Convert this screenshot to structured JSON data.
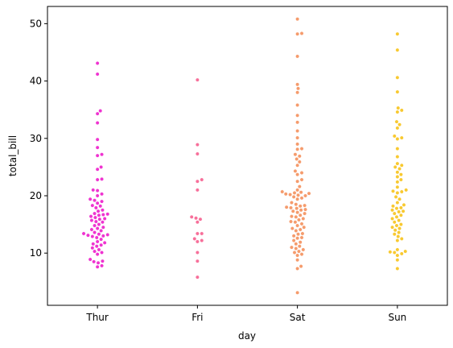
{
  "chart_data": {
    "type": "scatter",
    "subtype": "swarm",
    "xlabel": "day",
    "ylabel": "total_bill",
    "categories": [
      "Thur",
      "Fri",
      "Sat",
      "Sun"
    ],
    "ylim": [
      0.9,
      53.0
    ],
    "yticks": [
      10,
      20,
      30,
      40,
      50
    ],
    "grid": false,
    "colors": [
      "#ef33d0",
      "#f76f9a",
      "#f59b6c",
      "#f8c930"
    ],
    "series": [
      {
        "category": "Thur",
        "values": [
          43.1,
          41.2,
          34.8,
          34.3,
          32.7,
          29.8,
          28.4,
          27.2,
          27.0,
          25.0,
          24.6,
          22.9,
          22.8,
          21.0,
          20.9,
          20.3,
          20.0,
          19.4,
          19.2,
          19.0,
          18.7,
          18.3,
          18.2,
          17.9,
          17.5,
          17.3,
          16.9,
          16.8,
          16.7,
          16.6,
          16.4,
          16.2,
          16.0,
          15.9,
          15.7,
          15.5,
          15.4,
          15.0,
          14.8,
          14.5,
          14.3,
          14.1,
          13.9,
          13.6,
          13.4,
          13.3,
          13.2,
          13.1,
          13.0,
          12.9,
          12.7,
          12.4,
          12.0,
          11.8,
          11.6,
          11.4,
          11.2,
          10.9,
          10.6,
          10.3,
          10.1,
          9.8,
          8.9,
          8.6,
          8.5,
          8.3,
          7.8,
          7.6
        ]
      },
      {
        "category": "Fri",
        "values": [
          40.2,
          28.9,
          27.3,
          22.8,
          22.5,
          21.0,
          16.3,
          16.1,
          15.9,
          15.4,
          13.4,
          13.4,
          12.5,
          12.2,
          12.0,
          10.1,
          8.6,
          5.8
        ]
      },
      {
        "category": "Sat",
        "values": [
          50.8,
          48.3,
          48.2,
          44.3,
          39.4,
          38.7,
          38.0,
          35.8,
          34.0,
          32.8,
          31.3,
          30.1,
          29.0,
          28.2,
          28.1,
          27.2,
          26.9,
          26.4,
          25.9,
          25.3,
          24.3,
          24.0,
          23.7,
          22.8,
          22.5,
          21.6,
          21.0,
          20.7,
          20.6,
          20.5,
          20.4,
          20.3,
          20.2,
          20.1,
          20.0,
          19.8,
          19.6,
          19.4,
          18.8,
          18.5,
          18.3,
          18.2,
          18.0,
          17.9,
          17.8,
          17.6,
          17.5,
          17.3,
          17.1,
          16.9,
          16.6,
          16.4,
          16.3,
          16.0,
          15.8,
          15.5,
          15.4,
          15.1,
          14.8,
          14.5,
          14.3,
          14.1,
          13.9,
          13.4,
          13.3,
          13.0,
          12.7,
          12.6,
          12.2,
          11.9,
          11.6,
          11.2,
          11.0,
          10.8,
          10.6,
          10.3,
          10.1,
          9.8,
          9.6,
          8.8,
          7.7,
          7.3,
          3.1
        ]
      },
      {
        "category": "Sun",
        "values": [
          48.2,
          45.4,
          40.6,
          38.1,
          35.3,
          34.9,
          34.6,
          32.9,
          32.4,
          31.8,
          30.4,
          30.1,
          29.9,
          28.2,
          26.8,
          25.6,
          25.3,
          25.0,
          24.7,
          24.1,
          23.7,
          23.3,
          22.8,
          22.4,
          21.5,
          21.0,
          20.8,
          20.7,
          20.5,
          19.8,
          19.4,
          18.8,
          18.4,
          18.2,
          17.9,
          17.8,
          17.5,
          17.3,
          17.2,
          16.9,
          16.6,
          16.3,
          16.0,
          15.7,
          15.4,
          15.0,
          14.8,
          14.5,
          14.3,
          14.0,
          13.6,
          13.3,
          12.9,
          12.5,
          12.2,
          10.6,
          10.3,
          10.2,
          10.1,
          9.9,
          9.6,
          8.8,
          7.3
        ]
      }
    ]
  }
}
